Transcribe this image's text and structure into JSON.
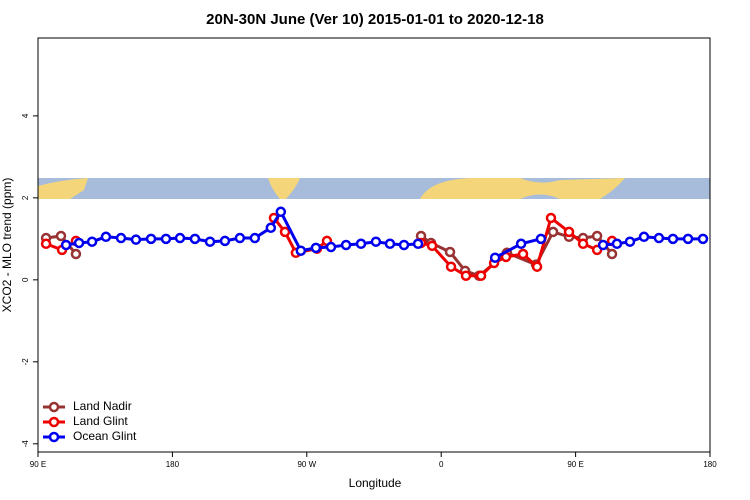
{
  "chart_data": {
    "type": "line",
    "title": "20N-30N June (Ver 10)   2015-01-01 to 2020-12-18",
    "x_label": "Longitude",
    "y_label": "XCO2 - MLO trend (ppm)",
    "xlim": [
      90,
      540
    ],
    "xticks": [
      {
        "value": 90,
        "label": "90 E"
      },
      180,
      {
        "value": 270,
        "label": "90 W"
      },
      {
        "value": 360,
        "label": "0"
      },
      {
        "value": 450,
        "label": "90 E"
      },
      {
        "value": 540,
        "label": "180"
      }
    ],
    "ylim": [
      -4.2,
      5.9
    ],
    "yticks": [
      -4,
      -2,
      0,
      2,
      4
    ],
    "legend": "bottom-left",
    "series": [
      {
        "name": "Land Nadir",
        "color": "#993333",
        "x": [
          95.4,
          105.4,
          115.4,
          null,
          346.5,
          353.2,
          365.9,
          376,
          385.4,
          404,
          423.5,
          434.9,
          445.6,
          455,
          464.4,
          474.4
        ],
        "values": [
          1.02,
          1.07,
          0.63,
          null,
          1.07,
          0.9,
          0.68,
          0.22,
          0.1,
          0.66,
          0.37,
          1.17,
          1.05,
          1.02,
          1.07,
          0.63
        ]
      },
      {
        "name": "Land Glint",
        "color": "#ee0000",
        "x": [
          95.4,
          106.1,
          115.4,
          null,
          248,
          255.4,
          262.7,
          276.8,
          283.5,
          null,
          346.5,
          353.9,
          366.6,
          376.6,
          386.7,
          395.4,
          403.4,
          414.8,
          424.2,
          433.5,
          445.6,
          455,
          464.4,
          474.4
        ],
        "values": [
          0.88,
          0.73,
          0.95,
          null,
          1.51,
          1.17,
          0.66,
          0.76,
          0.95,
          null,
          0.9,
          0.83,
          0.32,
          0.1,
          0.1,
          0.41,
          0.56,
          0.63,
          0.32,
          1.51,
          1.17,
          0.88,
          0.73,
          0.95
        ]
      },
      {
        "name": "Ocean Glint",
        "color": "#0000ee",
        "x": [
          108.8,
          117.5,
          126.2,
          135.5,
          145.6,
          155.6,
          165.7,
          175.7,
          185.1,
          195.1,
          205.2,
          215.2,
          225.2,
          235.2,
          245.9,
          252.6,
          266,
          276.1,
          286.2,
          296.3,
          306.3,
          316.3,
          325.7,
          335.1,
          344.5,
          null,
          396.1,
          413.5,
          426.8,
          null,
          468.4,
          477.7,
          486.4,
          495.8,
          505.8,
          515.2,
          525.3,
          535.3
        ],
        "values": [
          0.85,
          0.9,
          0.93,
          1.05,
          1.02,
          0.98,
          1.0,
          1.0,
          1.02,
          1.0,
          0.93,
          0.95,
          1.02,
          1.02,
          1.27,
          1.66,
          0.71,
          0.78,
          0.8,
          0.85,
          0.88,
          0.93,
          0.88,
          0.85,
          0.88,
          null,
          0.54,
          0.88,
          1.0,
          null,
          0.85,
          0.88,
          0.93,
          1.05,
          1.02,
          1.0,
          1.0,
          1.0
        ]
      }
    ]
  }
}
